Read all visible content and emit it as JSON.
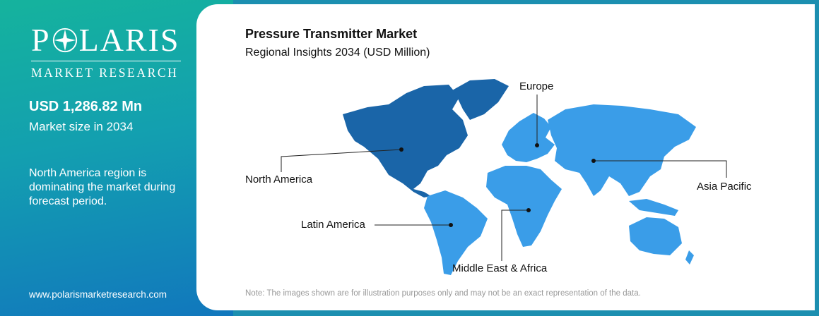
{
  "brand": {
    "name_part1": "P",
    "name_part2": "LARIS",
    "tagline": "MARKET RESEARCH"
  },
  "stat": {
    "value": "USD 1,286.82 Mn",
    "label": "Market size in 2034"
  },
  "insight": "North America region is dominating the market during forecast period.",
  "website": "www.polarismarketresearch.com",
  "chart": {
    "title": "Pressure Transmitter Market",
    "subtitle": "Regional Insights 2034 (USD Million)"
  },
  "regions": {
    "europe": "Europe",
    "north_america": "North America",
    "asia_pacific": "Asia Pacific",
    "latin_america": "Latin America",
    "mea": "Middle East & Africa"
  },
  "note": "Note: The images shown are for illustration purposes only and may not be an exact representation of the data.",
  "colors": {
    "dominant_region": "#1a65a8",
    "other_regions": "#3a9de8"
  }
}
